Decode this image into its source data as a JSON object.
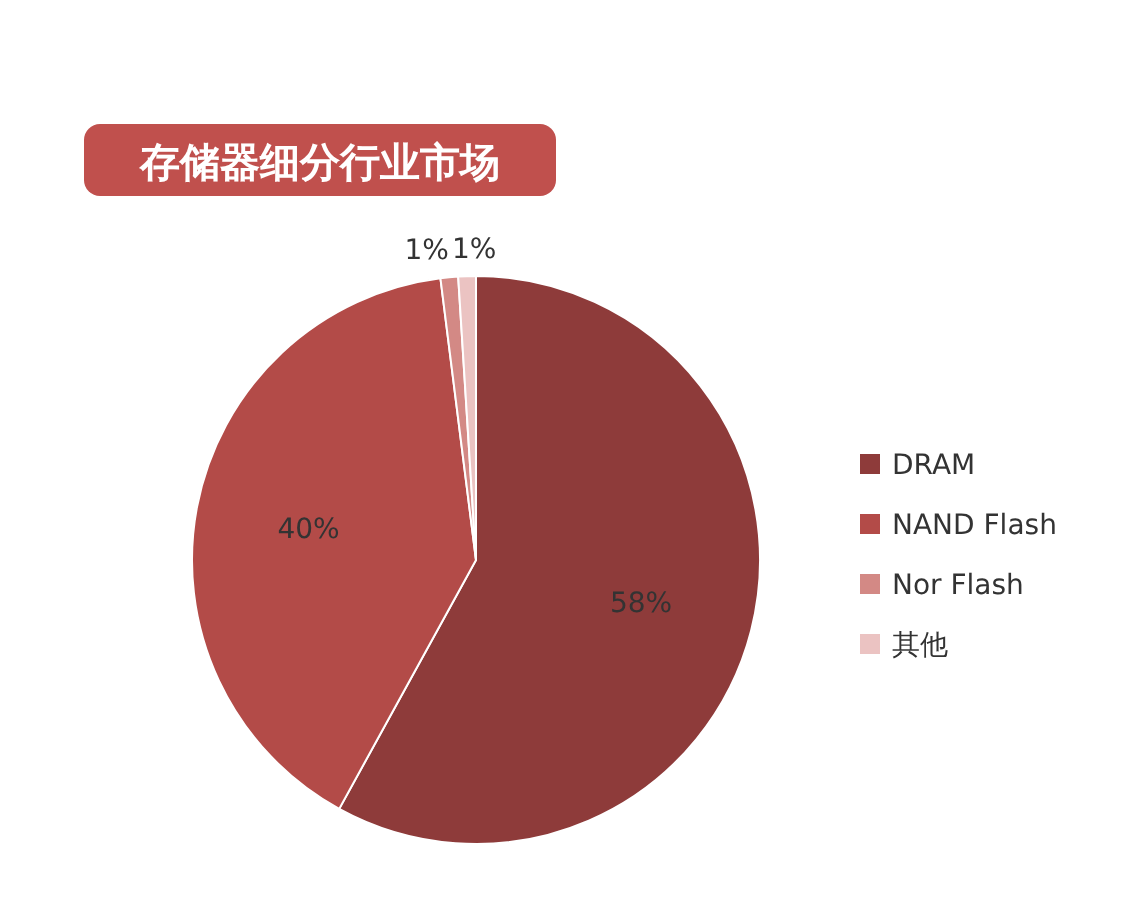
{
  "chart_data": {
    "type": "pie",
    "title": "存储器细分行业市场",
    "categories": [
      "DRAM",
      "NAND Flash",
      "Nor Flash",
      "其他"
    ],
    "values": [
      58,
      40,
      1,
      1
    ],
    "colors": [
      "#8e3b3a",
      "#b34b48",
      "#d38985",
      "#ebc3c2"
    ],
    "value_labels": [
      "58%",
      "40%",
      "1%",
      "1%"
    ],
    "legend": "right"
  }
}
